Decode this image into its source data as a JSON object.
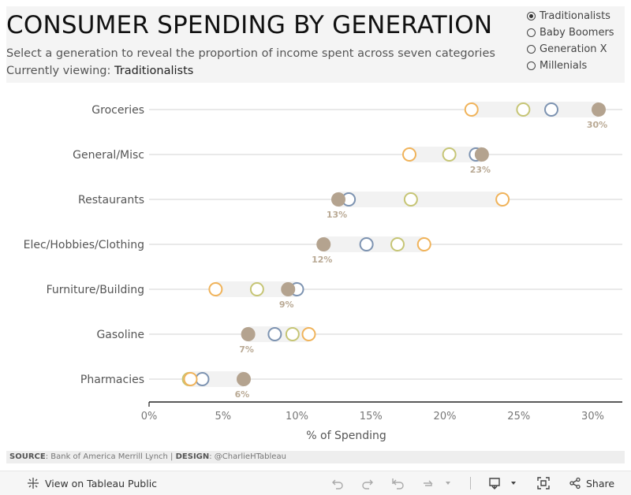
{
  "header": {
    "title": "CONSUMER SPENDING BY GENERATION",
    "subtitle": "Select a generation to reveal the proportion of income spent across seven categories",
    "viewing_prefix": "Currently viewing: ",
    "viewing_value": "Traditionalists"
  },
  "filter": {
    "options": [
      "Traditionalists",
      "Baby Boomers",
      "Generation X",
      "Millenials"
    ],
    "selected": "Traditionalists"
  },
  "chart_data": {
    "type": "dot-plot",
    "title": "CONSUMER SPENDING BY GENERATION",
    "xlabel": "% of Spending",
    "xlim": [
      0,
      32
    ],
    "xticks": [
      0,
      5,
      10,
      15,
      20,
      25,
      30
    ],
    "xtick_labels": [
      "0%",
      "5%",
      "10%",
      "15%",
      "20%",
      "25%",
      "30%"
    ],
    "categories": [
      "Groceries",
      "General/Misc",
      "Restaurants",
      "Elec/Hobbies/Clothing",
      "Furniture/Building",
      "Gasoline",
      "Pharmacies"
    ],
    "series": [
      {
        "name": "Traditionalists",
        "color": "#b4a38f",
        "values": [
          30.4,
          22.5,
          12.8,
          11.8,
          9.4,
          6.7,
          6.4
        ],
        "labels": [
          "30%",
          "23%",
          "13%",
          "12%",
          "9%",
          "7%",
          "6%"
        ]
      },
      {
        "name": "Baby Boomers",
        "color": "#c6c575",
        "values": [
          25.3,
          20.3,
          17.7,
          16.8,
          7.3,
          9.7,
          2.7
        ]
      },
      {
        "name": "Generation X",
        "color": "#7d93b1",
        "values": [
          27.2,
          22.1,
          13.5,
          14.7,
          10.0,
          8.5,
          3.6
        ]
      },
      {
        "name": "Millenials",
        "color": "#f0b35a",
        "values": [
          21.8,
          17.6,
          23.9,
          18.6,
          4.5,
          10.8,
          2.8
        ]
      }
    ],
    "selected_series": "Traditionalists"
  },
  "source": {
    "source_label": "SOURCE",
    "source_text": ": Bank of America Merrill Lynch | ",
    "design_label": "DESIGN",
    "design_text": ": @CharlieHTableau"
  },
  "footer": {
    "view_label": "View on Tableau Public",
    "share_label": "Share"
  }
}
